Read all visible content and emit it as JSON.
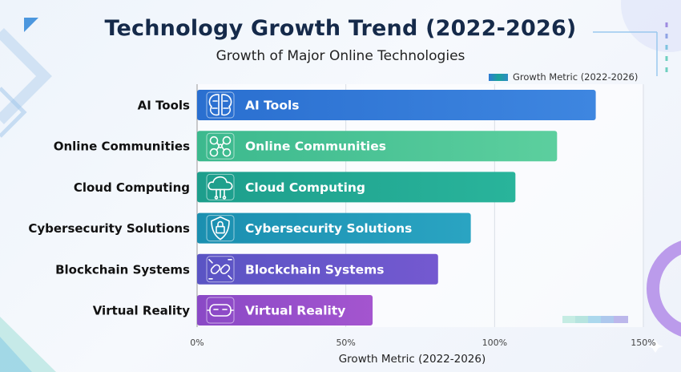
{
  "chart_data": {
    "type": "bar",
    "orientation": "horizontal",
    "title": "Technology Growth Trend (2022-2026)",
    "subtitle": "Growth of Major Online Technologies",
    "xlabel": "Growth Metric (2022-2026)",
    "ylabel": "",
    "xlim": [
      0,
      150
    ],
    "x_tick_labels": [
      "0%",
      "50%",
      "100%",
      "150%"
    ],
    "x_ticks": [
      0,
      50,
      100,
      150
    ],
    "grid": true,
    "legend": {
      "placement": "top-right",
      "entries": [
        "Growth Metric (2022-2026)"
      ]
    },
    "categories": [
      "AI Tools",
      "Online Communities",
      "Cloud Computing",
      "Cybersecurity Solutions",
      "Blockchain Systems",
      "Virtual Reality"
    ],
    "series": [
      {
        "name": "Growth Metric (2022-2026)",
        "values": [
          134,
          121,
          107,
          92,
          81,
          59
        ]
      }
    ],
    "bar_colors": [
      [
        "#2a6fd0",
        "#3e86e0"
      ],
      [
        "#3cb98e",
        "#5ccf9e"
      ],
      [
        "#1d9e8c",
        "#29b49b"
      ],
      [
        "#1b8fb0",
        "#2aa4c2"
      ],
      [
        "#5a54c4",
        "#7459d0"
      ],
      [
        "#8a49c6",
        "#a455cf"
      ]
    ],
    "icons": [
      "brain-icon",
      "people-network-icon",
      "cloud-circuit-icon",
      "shield-lock-icon",
      "chain-link-icon",
      "vr-headset-icon"
    ]
  }
}
